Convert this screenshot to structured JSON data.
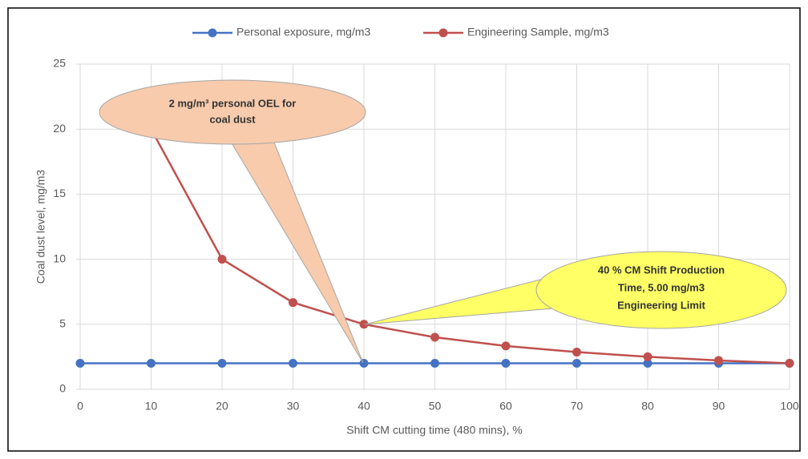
{
  "chart_data": {
    "type": "line",
    "x": [
      0,
      10,
      20,
      30,
      40,
      50,
      60,
      70,
      80,
      90,
      100
    ],
    "series": [
      {
        "name": "Personal exposure, mg/m3",
        "color": "#4472c4",
        "values": [
          2,
          2,
          2,
          2,
          2,
          2,
          2,
          2,
          2,
          2,
          2
        ]
      },
      {
        "name": "Engineering Sample, mg/m3",
        "color": "#c0504d",
        "values": [
          null,
          20,
          10,
          6.67,
          5,
          4,
          3.33,
          2.86,
          2.5,
          2.22,
          2
        ]
      }
    ],
    "xlabel": "Shift CM cutting time (480 mins), %",
    "ylabel": "Coal dust level, mg/m3",
    "xlim": [
      0,
      100
    ],
    "xticks": [
      0,
      10,
      20,
      30,
      40,
      50,
      60,
      70,
      80,
      90,
      100
    ],
    "ylim": [
      0,
      25
    ],
    "yticks": [
      0,
      5,
      10,
      15,
      20,
      25
    ],
    "grid": true,
    "legend": "top",
    "annotations": [
      {
        "lines": [
          "2 mg/m³ personal OEL for",
          "coal dust"
        ]
      },
      {
        "lines": [
          "40 % CM Shift Production",
          "Time, 5.00 mg/m3",
          "Engineering Limit"
        ]
      }
    ]
  }
}
